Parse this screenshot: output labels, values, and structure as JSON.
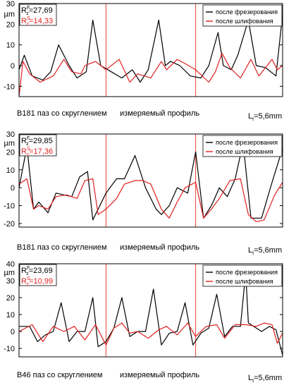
{
  "colors": {
    "milling": "#000000",
    "grinding": "#e02020",
    "marker": "#e8433a"
  },
  "chart_data": [
    {
      "type": "line",
      "ylabel": "µm",
      "ylim": [
        -15,
        30
      ],
      "yticks": [
        -10,
        0,
        10,
        20,
        30
      ],
      "legend": {
        "placement": "top-right",
        "entries": [
          "после фрезерования",
          "после шлифования"
        ]
      },
      "rz_milling": {
        "sym": "R",
        "sup": "F",
        "sub": "z",
        "val": "=27,69"
      },
      "rz_grinding": {
        "sym": "R",
        "sup": "S",
        "sub": "z",
        "val": "=14,33"
      },
      "caption_left": "B181 паз со скруглением",
      "caption_mid": "измеряемый профиль",
      "length": {
        "sym": "L",
        "sub": "t",
        "val": "=5,6mm"
      },
      "markers": [
        0.33,
        0.67
      ],
      "series": [
        {
          "name": "после фрезерования",
          "color": "#000000",
          "x": [
            0,
            0.02,
            0.05,
            0.09,
            0.12,
            0.15,
            0.19,
            0.22,
            0.255,
            0.28,
            0.31,
            0.35,
            0.39,
            0.43,
            0.46,
            0.49,
            0.53,
            0.555,
            0.575,
            0.61,
            0.65,
            0.69,
            0.72,
            0.755,
            0.775,
            0.805,
            0.83,
            0.87,
            0.9,
            0.935,
            0.955,
            0.975,
            1
          ],
          "y": [
            -2,
            5,
            -5,
            -7,
            -3,
            10,
            0,
            -6,
            -3,
            22,
            0,
            -3,
            -6,
            -2,
            -8,
            -2,
            22,
            0,
            2,
            0,
            -5,
            -6,
            0,
            16,
            0,
            -2,
            5,
            22,
            0,
            -1,
            -3,
            -5,
            25
          ]
        },
        {
          "name": "после шлифования",
          "color": "#e02020",
          "x": [
            0,
            0.015,
            0.04,
            0.08,
            0.13,
            0.17,
            0.2,
            0.235,
            0.25,
            0.29,
            0.33,
            0.38,
            0.42,
            0.45,
            0.5,
            0.54,
            0.56,
            0.6,
            0.63,
            0.67,
            0.72,
            0.745,
            0.77,
            0.8,
            0.84,
            0.88,
            0.91,
            0.935,
            0.96,
            0.98,
            1
          ],
          "y": [
            -15,
            2,
            -4,
            -8,
            -5,
            3,
            -3,
            -4,
            0,
            2,
            -2,
            3,
            -8,
            -4,
            -6,
            2,
            -2,
            3,
            1,
            -2,
            -8,
            -3,
            6,
            -1,
            -6,
            3,
            -5,
            -1,
            3,
            -2,
            0
          ]
        }
      ]
    },
    {
      "type": "line",
      "ylabel": "µm",
      "ylim": [
        -22,
        30
      ],
      "yticks": [
        -20,
        -10,
        0,
        10,
        20,
        30
      ],
      "legend": {
        "placement": "top-right",
        "entries": [
          "после фрезерования",
          "после шлифования"
        ]
      },
      "rz_milling": {
        "sym": "R",
        "sup": "F",
        "sub": "z",
        "val": "=29,85"
      },
      "rz_grinding": {
        "sym": "R",
        "sup": "S",
        "sub": "z",
        "val": "=17,36"
      },
      "caption_left": "B181 паз со скруглением",
      "caption_mid": "измеряемый профиль",
      "length": {
        "sym": "L",
        "sub": "t",
        "val": "=5,6mm"
      },
      "markers": [
        0.33,
        0.67
      ],
      "series": [
        {
          "name": "после фрезерования",
          "color": "#000000",
          "x": [
            0,
            0.03,
            0.055,
            0.075,
            0.11,
            0.14,
            0.17,
            0.2,
            0.23,
            0.26,
            0.28,
            0.3,
            0.33,
            0.37,
            0.4,
            0.44,
            0.48,
            0.52,
            0.54,
            0.57,
            0.6,
            0.64,
            0.67,
            0.7,
            0.73,
            0.76,
            0.79,
            0.82,
            0.85,
            0.88,
            0.92,
            0.96,
            1
          ],
          "y": [
            0,
            23,
            -12,
            -8,
            -14,
            -3,
            -4,
            -5,
            6,
            9,
            -18,
            -12,
            -3,
            5,
            5,
            18,
            0,
            -12,
            -15,
            -10,
            0,
            -3,
            20,
            -17,
            -10,
            0,
            -5,
            5,
            25,
            -17,
            -17,
            3,
            22
          ]
        },
        {
          "name": "после шлифования",
          "color": "#e02020",
          "x": [
            0,
            0.03,
            0.055,
            0.075,
            0.11,
            0.14,
            0.18,
            0.22,
            0.25,
            0.28,
            0.3,
            0.33,
            0.37,
            0.4,
            0.44,
            0.47,
            0.5,
            0.54,
            0.57,
            0.6,
            0.63,
            0.67,
            0.7,
            0.73,
            0.76,
            0.8,
            0.84,
            0.87,
            0.9,
            0.93,
            0.97,
            1
          ],
          "y": [
            2,
            5,
            -12,
            -10,
            -12,
            -5,
            -4,
            -6,
            4,
            5,
            -15,
            -12,
            -6,
            2,
            4,
            4,
            2,
            -12,
            -17,
            -8,
            0,
            3,
            -17,
            -12,
            -6,
            4,
            5,
            -15,
            -19,
            -18,
            -4,
            3
          ]
        }
      ]
    },
    {
      "type": "line",
      "ylabel": "µm",
      "ylim": [
        -15,
        40
      ],
      "yticks": [
        -10,
        0,
        10,
        20,
        30,
        40
      ],
      "legend": {
        "placement": "top-right",
        "entries": [
          "после фрезерования",
          "после шлифования"
        ]
      },
      "rz_milling": {
        "sym": "R",
        "sup": "F",
        "sub": "z",
        "val": "=23,69"
      },
      "rz_grinding": {
        "sym": "R",
        "sup": "S",
        "sub": "z",
        "val": "=10,99"
      },
      "caption_left": "B46  паз со скруглением",
      "caption_mid": "измеряемый профиль",
      "length": {
        "sym": "L",
        "sub": "t",
        "val": "=5,6mm"
      },
      "markers": [
        0.33,
        0.67
      ],
      "series": [
        {
          "name": "после фрезерования",
          "color": "#000000",
          "x": [
            0,
            0.04,
            0.07,
            0.1,
            0.13,
            0.16,
            0.19,
            0.22,
            0.25,
            0.28,
            0.3,
            0.33,
            0.36,
            0.39,
            0.42,
            0.45,
            0.48,
            0.51,
            0.54,
            0.57,
            0.6,
            0.63,
            0.66,
            0.69,
            0.72,
            0.75,
            0.78,
            0.81,
            0.84,
            0.86,
            0.87,
            0.89,
            0.92,
            0.95,
            0.975,
            1
          ],
          "y": [
            3,
            3,
            -6,
            -2,
            0,
            17,
            -6,
            0,
            0,
            20,
            -9,
            -6,
            2,
            20,
            -3,
            0,
            0,
            25,
            -8,
            -1,
            0,
            17,
            -8,
            -1,
            2,
            22,
            -3,
            3,
            3,
            35,
            5,
            3,
            0,
            3,
            1,
            -14
          ]
        },
        {
          "name": "после шлифования",
          "color": "#e02020",
          "x": [
            0,
            0.05,
            0.09,
            0.13,
            0.17,
            0.21,
            0.25,
            0.29,
            0.33,
            0.36,
            0.39,
            0.42,
            0.45,
            0.49,
            0.53,
            0.56,
            0.6,
            0.64,
            0.67,
            0.71,
            0.75,
            0.78,
            0.82,
            0.86,
            0.9,
            0.93,
            0.96,
            0.98,
            1
          ],
          "y": [
            0,
            4,
            -6,
            3,
            0,
            3,
            -5,
            4,
            -8,
            2,
            5,
            -1,
            0,
            -4,
            1,
            3,
            -2,
            5,
            -3,
            3,
            4,
            -4,
            4,
            4,
            3,
            5,
            4,
            -7,
            -1
          ]
        }
      ]
    }
  ]
}
